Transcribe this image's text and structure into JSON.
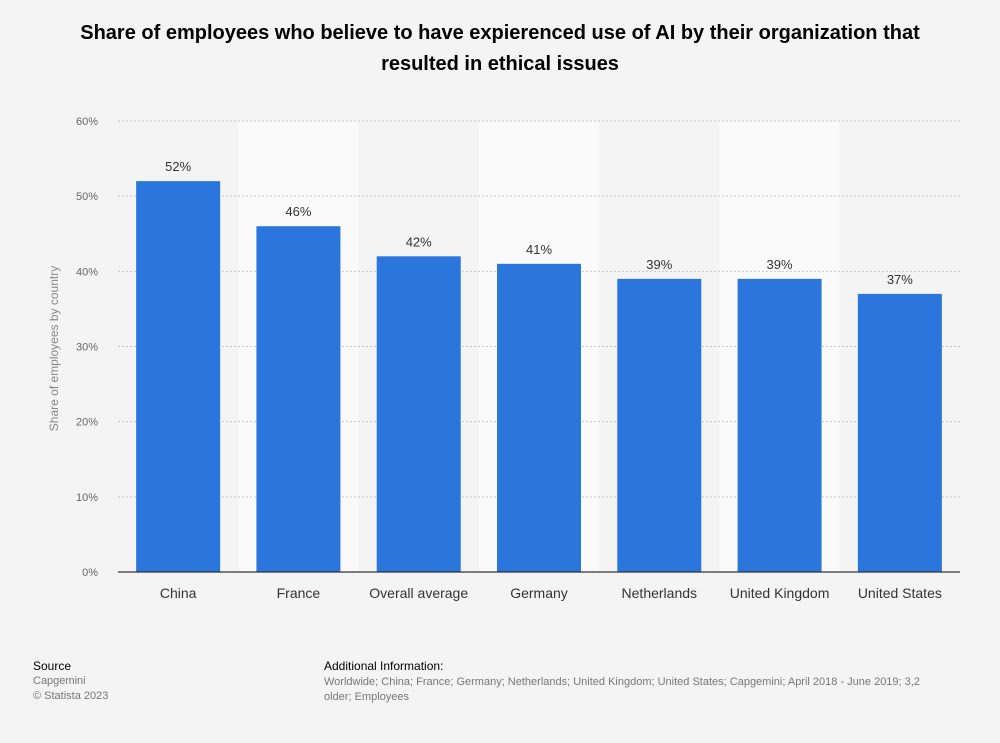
{
  "chart_data": {
    "type": "bar",
    "title": "Share of employees who believe to have expierenced use of AI by their organization that resulted in ethical issues",
    "ylabel": "Share of employees by country",
    "xlabel": "",
    "categories": [
      "China",
      "France",
      "Overall average",
      "Germany",
      "Netherlands",
      "United Kingdom",
      "United States"
    ],
    "values": [
      52,
      46,
      42,
      41,
      39,
      39,
      37
    ],
    "value_labels": [
      "52%",
      "46%",
      "42%",
      "41%",
      "39%",
      "39%",
      "37%"
    ],
    "ylim": [
      0,
      60
    ],
    "yticks": [
      0,
      10,
      20,
      30,
      40,
      50,
      60
    ],
    "ytick_labels": [
      "0%",
      "10%",
      "20%",
      "30%",
      "40%",
      "50%",
      "60%"
    ],
    "grid": true,
    "legend": "none",
    "bar_color": "#2a76dd"
  },
  "footer": {
    "source_heading": "Source",
    "source_lines": [
      "Capgemini",
      "© Statista 2023"
    ],
    "info_heading": "Additional Information:",
    "info_lines": [
      "Worldwide; China; France; Germany; Netherlands; United Kingdom; United States; Capgemini; April 2018 - June 2019; 3,2",
      "older; Employees"
    ]
  }
}
